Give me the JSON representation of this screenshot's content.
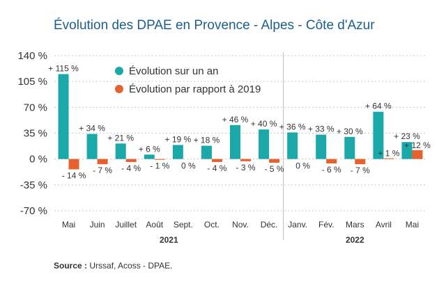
{
  "chart_data": {
    "type": "bar",
    "title": "Évolution des DPAE en Provence - Alpes - Côte d'Azur",
    "categories": [
      "Mai",
      "Juin",
      "Juillet",
      "Août",
      "Sept.",
      "Oct.",
      "Nov.",
      "Déc.",
      "Janv.",
      "Fév.",
      "Mars",
      "Avril",
      "Mai"
    ],
    "year_groups": [
      {
        "label": "2021",
        "from": 0,
        "to": 7
      },
      {
        "label": "2022",
        "from": 8,
        "to": 12
      }
    ],
    "series": [
      {
        "name": "Évolution sur un an",
        "color": "#1aa8a8",
        "values": [
          115,
          34,
          21,
          6,
          19,
          18,
          46,
          40,
          36,
          33,
          30,
          64,
          23
        ],
        "labels": [
          "+ 115 %",
          "+ 34 %",
          "+ 21 %",
          "+ 6 %",
          "+ 19 %",
          "+ 18 %",
          "+ 46 %",
          "+ 40 %",
          "+ 36 %",
          "+ 33 %",
          "+ 30 %",
          "+ 64 %",
          "+ 23 %"
        ]
      },
      {
        "name": "Évolution par rapport à 2019",
        "color": "#e8602c",
        "values": [
          -14,
          -7,
          -4,
          -1,
          0,
          -4,
          -3,
          -5,
          0,
          -6,
          -7,
          1,
          12
        ],
        "labels": [
          "- 14 %",
          "- 7 %",
          "- 4 %",
          "- 1 %",
          "0 %",
          "- 4 %",
          "- 3 %",
          "- 5 %",
          "0 %",
          "- 6 %",
          "- 7 %",
          "+ 1 %",
          "+ 12 %"
        ]
      }
    ],
    "yticks": [
      140,
      105,
      70,
      35,
      0,
      -35,
      -70
    ],
    "ytick_labels": [
      "140 %",
      "105 %",
      "70 %",
      "35 %",
      "0 %",
      "-35 %",
      "-70 %"
    ],
    "ylim": [
      -70,
      140
    ],
    "grid": "dotted horizontal",
    "legend_position": "top-center"
  },
  "source": {
    "label": "Source :",
    "text": "Urssaf, Acoss - DPAE."
  }
}
